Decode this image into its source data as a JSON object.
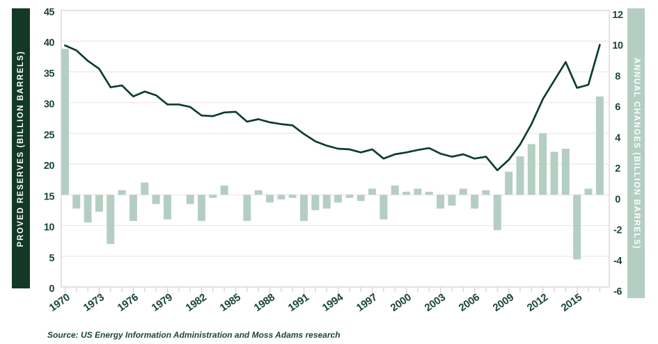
{
  "source_note": "Source: US Energy Information Administration and Moss Adams research",
  "chart_data": {
    "type": "combo-line-bar",
    "title": "",
    "x": [
      1970,
      1971,
      1972,
      1973,
      1974,
      1975,
      1976,
      1977,
      1978,
      1979,
      1980,
      1981,
      1982,
      1983,
      1984,
      1985,
      1986,
      1987,
      1988,
      1989,
      1990,
      1991,
      1992,
      1993,
      1994,
      1995,
      1996,
      1997,
      1998,
      1999,
      2000,
      2001,
      2002,
      2003,
      2004,
      2005,
      2006,
      2007,
      2008,
      2009,
      2010,
      2011,
      2012,
      2013,
      2014,
      2015,
      2016,
      2017
    ],
    "x_tick_labels": [
      "1970",
      "1973",
      "1976",
      "1979",
      "1982",
      "1985",
      "1988",
      "1991",
      "1994",
      "1997",
      "2000",
      "2003",
      "2006",
      "2009",
      "2012",
      "2015"
    ],
    "series": [
      {
        "name": "Proved Reserves",
        "type": "line",
        "axis": "left",
        "values": [
          39.3,
          38.5,
          36.8,
          35.5,
          32.5,
          32.8,
          31.0,
          31.8,
          31.2,
          29.7,
          29.7,
          29.3,
          27.9,
          27.8,
          28.4,
          28.5,
          26.9,
          27.3,
          26.8,
          26.5,
          26.3,
          24.9,
          23.7,
          23.0,
          22.5,
          22.4,
          21.9,
          22.4,
          20.9,
          21.6,
          21.9,
          22.3,
          22.6,
          21.7,
          21.2,
          21.6,
          20.9,
          21.2,
          19.0,
          20.7,
          23.2,
          26.5,
          30.6,
          33.6,
          36.6,
          32.4,
          32.9,
          39.4
        ]
      },
      {
        "name": "Annual Changes",
        "type": "bar",
        "axis": "right",
        "values": [
          9.5,
          -0.9,
          -1.8,
          -1.1,
          -3.2,
          0.3,
          -1.7,
          0.8,
          -0.6,
          -1.6,
          0.0,
          -0.6,
          -1.7,
          -0.2,
          0.6,
          0.0,
          -1.7,
          0.3,
          -0.5,
          -0.3,
          -0.2,
          -1.7,
          -1.0,
          -0.9,
          -0.5,
          -0.2,
          -0.4,
          0.4,
          -1.6,
          0.6,
          0.2,
          0.4,
          0.2,
          -0.9,
          -0.7,
          0.4,
          -0.9,
          0.3,
          -2.3,
          1.5,
          2.5,
          3.3,
          4.0,
          2.8,
          3.0,
          -4.2,
          0.4,
          6.4
        ]
      }
    ],
    "left_axis": {
      "title": "PROVED RESERVES (BILLION BARRELS)",
      "min": 0,
      "max": 45,
      "step": 5,
      "ticks": [
        "0",
        "5",
        "10",
        "15",
        "20",
        "25",
        "30",
        "35",
        "40",
        "45"
      ]
    },
    "right_axis": {
      "title": "ANNUAL CHANGES (BILLION BARRELS)",
      "min": -6,
      "max": 12,
      "step": 2,
      "ticks": [
        "-6",
        "-4",
        "-2",
        "0",
        "2",
        "4",
        "6",
        "8",
        "10",
        "12"
      ]
    },
    "grid": {
      "horizontal": true,
      "vertical": false
    },
    "legend_position": "none",
    "colors": {
      "line": "#0e3c2c",
      "bar": "#b5cec3",
      "left_band_bg": "#133826",
      "left_band_text": "#ffffff",
      "right_band_bg": "#b5cec3",
      "right_band_text": "#ffffff",
      "axis_text": "#1b4639",
      "gridline": "#ece7e2",
      "frame": "#d8cdc5",
      "background": "#ffffff"
    }
  }
}
